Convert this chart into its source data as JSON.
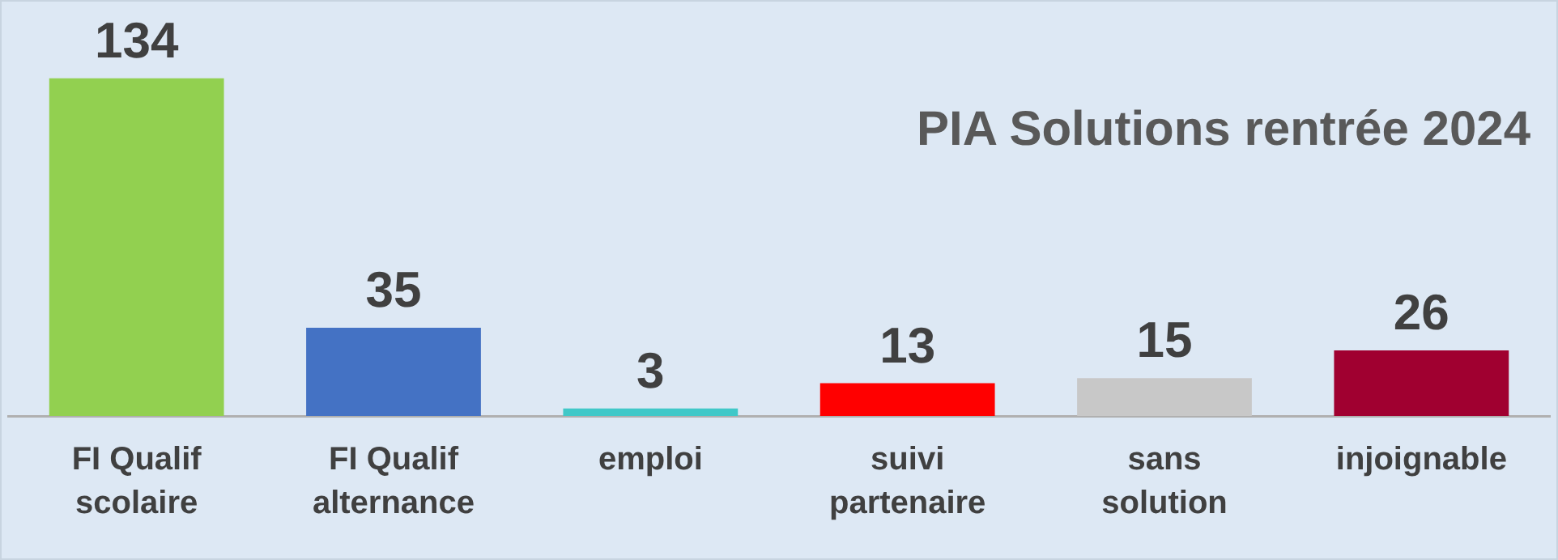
{
  "chart_data": {
    "type": "bar",
    "title": "PIA Solutions rentrée 2024",
    "categories": [
      "FI Qualif\nscolaire",
      "FI Qualif\nalternance",
      "emploi",
      "suivi\npartenaire",
      "sans\nsolution",
      "injoignable"
    ],
    "values": [
      134,
      35,
      3,
      13,
      15,
      26
    ],
    "colors": [
      "#92d050",
      "#4472c4",
      "#40c8c8",
      "#ff0000",
      "#c8c8c8",
      "#a00030"
    ],
    "data_labels": true,
    "grid": false,
    "legend": false
  }
}
